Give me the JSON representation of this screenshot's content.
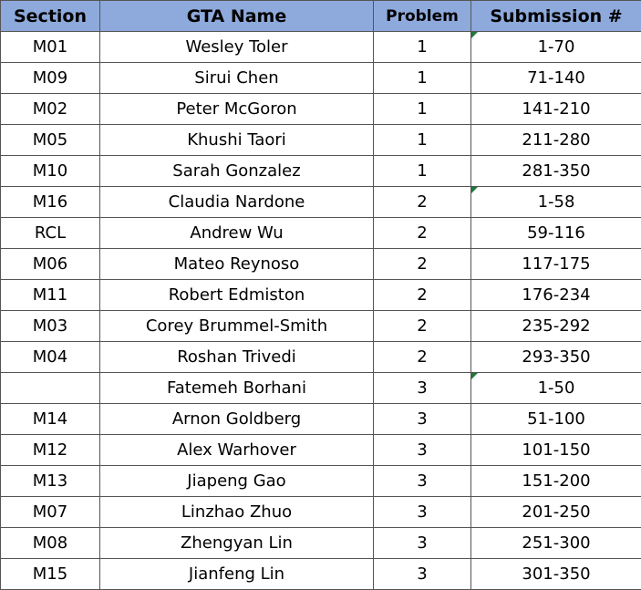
{
  "headers": {
    "section": "Section",
    "name": "GTA Name",
    "problem": "Problem",
    "submission": "Submission #"
  },
  "colors": {
    "header_bg": "#8ea9db",
    "grid": "#555555",
    "comment_marker": "#1e7a3c"
  },
  "rows": [
    {
      "section": "M01",
      "name": "Wesley Toler",
      "problem": "1",
      "submission": "1-70",
      "marker": true
    },
    {
      "section": "M09",
      "name": "Sirui Chen",
      "problem": "1",
      "submission": "71-140",
      "marker": false
    },
    {
      "section": "M02",
      "name": "Peter McGoron",
      "problem": "1",
      "submission": "141-210",
      "marker": false
    },
    {
      "section": "M05",
      "name": "Khushi Taori",
      "problem": "1",
      "submission": "211-280",
      "marker": false
    },
    {
      "section": "M10",
      "name": "Sarah Gonzalez",
      "problem": "1",
      "submission": "281-350",
      "marker": false
    },
    {
      "section": "M16",
      "name": "Claudia Nardone",
      "problem": "2",
      "submission": "1-58",
      "marker": true
    },
    {
      "section": "RCL",
      "name": "Andrew Wu",
      "problem": "2",
      "submission": "59-116",
      "marker": false
    },
    {
      "section": "M06",
      "name": "Mateo Reynoso",
      "problem": "2",
      "submission": "117-175",
      "marker": false
    },
    {
      "section": "M11",
      "name": "Robert Edmiston",
      "problem": "2",
      "submission": "176-234",
      "marker": false
    },
    {
      "section": "M03",
      "name": "Corey Brummel-Smith",
      "problem": "2",
      "submission": "235-292",
      "marker": false
    },
    {
      "section": "M04",
      "name": "Roshan Trivedi",
      "problem": "2",
      "submission": "293-350",
      "marker": false
    },
    {
      "section": "",
      "name": "Fatemeh Borhani",
      "problem": "3",
      "submission": "1-50",
      "marker": true
    },
    {
      "section": "M14",
      "name": "Arnon Goldberg",
      "problem": "3",
      "submission": "51-100",
      "marker": false
    },
    {
      "section": "M12",
      "name": "Alex Warhover",
      "problem": "3",
      "submission": "101-150",
      "marker": false
    },
    {
      "section": "M13",
      "name": "Jiapeng Gao",
      "problem": "3",
      "submission": "151-200",
      "marker": false
    },
    {
      "section": "M07",
      "name": "Linzhao Zhuo",
      "problem": "3",
      "submission": "201-250",
      "marker": false
    },
    {
      "section": "M08",
      "name": "Zhengyan Lin",
      "problem": "3",
      "submission": "251-300",
      "marker": false
    },
    {
      "section": "M15",
      "name": "Jianfeng Lin",
      "problem": "3",
      "submission": "301-350",
      "marker": false
    }
  ]
}
